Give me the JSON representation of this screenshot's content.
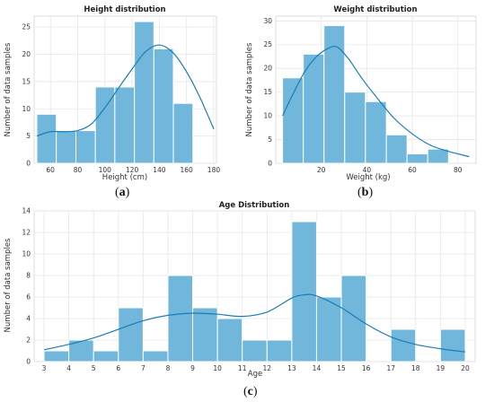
{
  "captions": [
    {
      "before": "(",
      "letter": "a",
      "after": ")"
    },
    {
      "before": "(",
      "letter": "b",
      "after": ")"
    },
    {
      "before": "(",
      "letter": "c",
      "after": ")"
    }
  ],
  "chart_data": [
    {
      "type": "bar",
      "title": "Height distribution",
      "xlabel": "Height (cm)",
      "ylabel": "Number of data samples",
      "xlim": [
        48,
        182
      ],
      "ylim": [
        0,
        27
      ],
      "xticks": [
        60,
        80,
        100,
        120,
        140,
        160,
        180
      ],
      "yticks": [
        0,
        5,
        10,
        15,
        20,
        25
      ],
      "bins": [
        [
          50,
          64.3
        ],
        [
          64.3,
          78.7
        ],
        [
          78.7,
          93
        ],
        [
          93,
          107.3
        ],
        [
          107.3,
          121.7
        ],
        [
          121.7,
          136
        ],
        [
          136,
          150.3
        ],
        [
          150.3,
          164.7
        ],
        [
          164.7,
          179
        ]
      ],
      "values": [
        9,
        6,
        6,
        14,
        14,
        26,
        21,
        11,
        0
      ],
      "kde": [
        [
          50,
          5
        ],
        [
          60,
          5.8
        ],
        [
          70,
          5.8
        ],
        [
          80,
          6
        ],
        [
          90,
          7.2
        ],
        [
          100,
          10.2
        ],
        [
          110,
          13.8
        ],
        [
          120,
          17.3
        ],
        [
          130,
          20.5
        ],
        [
          140,
          21.7
        ],
        [
          150,
          20.3
        ],
        [
          160,
          16.8
        ],
        [
          170,
          12
        ],
        [
          180,
          6.3
        ]
      ],
      "grid": true
    },
    {
      "type": "bar",
      "title": "Weight distribution",
      "xlabel": "Weight (kg)",
      "ylabel": "Number of data samples",
      "xlim": [
        0,
        88
      ],
      "ylim": [
        0,
        31
      ],
      "xticks": [
        20,
        40,
        60,
        80
      ],
      "yticks": [
        0,
        5,
        10,
        15,
        20,
        25,
        30
      ],
      "bins": [
        [
          3,
          12.1
        ],
        [
          12.1,
          21.2
        ],
        [
          21.2,
          30.3
        ],
        [
          30.3,
          39.4
        ],
        [
          39.4,
          48.6
        ],
        [
          48.6,
          57.7
        ],
        [
          57.7,
          66.8
        ],
        [
          66.8,
          75.9
        ],
        [
          75.9,
          85
        ]
      ],
      "values": [
        18,
        23,
        29,
        15,
        13,
        6,
        2,
        3,
        0
      ],
      "kde": [
        [
          3,
          10
        ],
        [
          8,
          15
        ],
        [
          13,
          19.5
        ],
        [
          18,
          22.5
        ],
        [
          23,
          24.2
        ],
        [
          27,
          24.5
        ],
        [
          32,
          22
        ],
        [
          38,
          17.8
        ],
        [
          45,
          13.5
        ],
        [
          52,
          9.5
        ],
        [
          60,
          6.2
        ],
        [
          68,
          3.8
        ],
        [
          76,
          2.5
        ],
        [
          85,
          1.4
        ]
      ],
      "grid": true
    },
    {
      "type": "bar",
      "title": "Age Distribution",
      "xlabel": "Age",
      "ylabel": "Number of data samples",
      "xlim": [
        2.6,
        20.4
      ],
      "ylim": [
        0,
        14
      ],
      "xticks": [
        3,
        4,
        5,
        6,
        7,
        8,
        9,
        10,
        11,
        12,
        13,
        14,
        15,
        16,
        17,
        18,
        19,
        20
      ],
      "yticks": [
        0,
        2,
        4,
        6,
        8,
        10,
        12,
        14
      ],
      "bins": [
        [
          3,
          4
        ],
        [
          4,
          5
        ],
        [
          5,
          6
        ],
        [
          6,
          7
        ],
        [
          7,
          8
        ],
        [
          8,
          9
        ],
        [
          9,
          10
        ],
        [
          10,
          11
        ],
        [
          11,
          12
        ],
        [
          12,
          13
        ],
        [
          13,
          14
        ],
        [
          14,
          15
        ],
        [
          15,
          16
        ],
        [
          16,
          17
        ],
        [
          17,
          18
        ],
        [
          18,
          19
        ],
        [
          19,
          20
        ]
      ],
      "values": [
        1,
        2,
        1,
        5,
        1,
        8,
        5,
        4,
        2,
        2,
        13,
        6,
        8,
        0,
        3,
        0,
        3
      ],
      "kde": [
        [
          3,
          1.1
        ],
        [
          4,
          1.6
        ],
        [
          5,
          2.2
        ],
        [
          6,
          3
        ],
        [
          7,
          3.8
        ],
        [
          8,
          4.3
        ],
        [
          9,
          4.5
        ],
        [
          10,
          4.4
        ],
        [
          11,
          4.2
        ],
        [
          12,
          4.6
        ],
        [
          13,
          5.9
        ],
        [
          13.5,
          6.2
        ],
        [
          14,
          6.1
        ],
        [
          15,
          5
        ],
        [
          16,
          3.5
        ],
        [
          17,
          2.3
        ],
        [
          18,
          1.6
        ],
        [
          19,
          1.2
        ],
        [
          20,
          0.9
        ]
      ],
      "grid": true
    }
  ]
}
